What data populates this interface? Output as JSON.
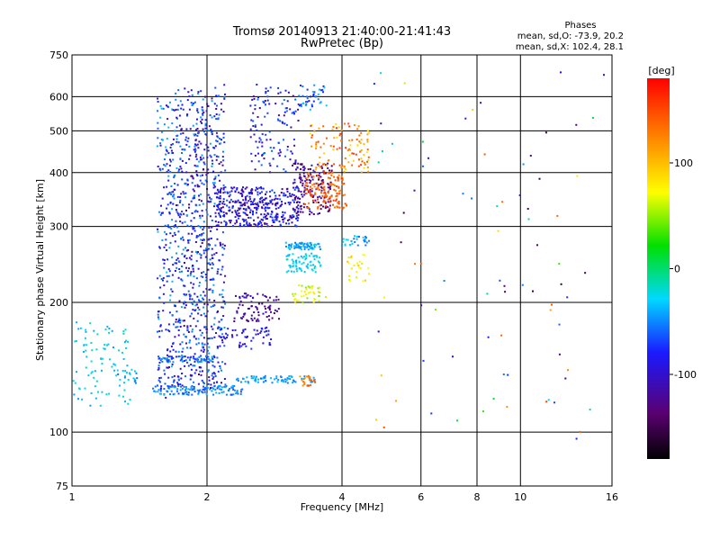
{
  "chart_data": {
    "type": "scatter",
    "title": "Tromsø 20140913 21:40:00-21:41:43",
    "subtitle": "RwPretec (Bp)",
    "stats": {
      "heading": "Phases",
      "line1": "mean, sd,O: -73.9, 20.2",
      "line2": "mean, sd,X: 102.4, 28.1"
    },
    "xlabel": "Frequency [MHz]",
    "ylabel": "Stationary phase Virtual Height [km]",
    "xscale": "log",
    "yscale": "log",
    "xlim": [
      1,
      16
    ],
    "ylim": [
      75,
      750
    ],
    "grid": true,
    "xticks": [
      1,
      2,
      4,
      6,
      8,
      10,
      16
    ],
    "xtick_labels": [
      "1",
      "2",
      "4",
      "6",
      "8",
      "10",
      "16"
    ],
    "xgrid": [
      2,
      4,
      6,
      8,
      10
    ],
    "yticks": [
      75,
      100,
      200,
      300,
      400,
      500,
      600,
      750
    ],
    "ytick_labels": [
      "75",
      "100",
      "200",
      "300",
      "400",
      "500",
      "600",
      "750"
    ],
    "ygrid": [
      100,
      200,
      300,
      400,
      500,
      600
    ],
    "colorbar": {
      "label": "[deg]",
      "ticks": [
        100,
        0,
        -100
      ],
      "tick_labels": [
        "100",
        "0",
        "-100"
      ],
      "range": [
        -180,
        180
      ],
      "cmap": "rainbow"
    },
    "point_groups": [
      {
        "x": [
          1.0,
          1.35
        ],
        "y": [
          115,
          180
        ],
        "c": [
          -45,
          -15
        ],
        "n": 90
      },
      {
        "x": [
          1.25,
          1.4
        ],
        "y": [
          130,
          140
        ],
        "c": [
          -60,
          -20
        ],
        "n": 20
      },
      {
        "x": [
          1.55,
          1.7
        ],
        "y": [
          120,
          600
        ],
        "c": [
          -110,
          -30
        ],
        "n": 220
      },
      {
        "x": [
          1.7,
          2.0
        ],
        "y": [
          125,
          630
        ],
        "c": [
          -120,
          -40
        ],
        "n": 500
      },
      {
        "x": [
          2.0,
          2.2
        ],
        "y": [
          125,
          640
        ],
        "c": [
          -120,
          -40
        ],
        "n": 260
      },
      {
        "x": [
          1.5,
          2.4
        ],
        "y": [
          122,
          128
        ],
        "c": [
          -70,
          -35
        ],
        "n": 110
      },
      {
        "x": [
          1.55,
          2.1
        ],
        "y": [
          145,
          150
        ],
        "c": [
          -80,
          -40
        ],
        "n": 60
      },
      {
        "x": [
          2.1,
          3.2
        ],
        "y": [
          300,
          370
        ],
        "c": [
          -130,
          -60
        ],
        "n": 380
      },
      {
        "x": [
          2.3,
          2.9
        ],
        "y": [
          180,
          210
        ],
        "c": [
          -140,
          -100
        ],
        "n": 80
      },
      {
        "x": [
          2.1,
          2.8
        ],
        "y": [
          155,
          175
        ],
        "c": [
          -110,
          -70
        ],
        "n": 60
      },
      {
        "x": [
          2.3,
          3.5
        ],
        "y": [
          130,
          135
        ],
        "c": [
          -60,
          -30
        ],
        "n": 70
      },
      {
        "x": [
          2.5,
          3.2
        ],
        "y": [
          400,
          640
        ],
        "c": [
          -120,
          -50
        ],
        "n": 120
      },
      {
        "x": [
          3.0,
          3.6
        ],
        "y": [
          265,
          275
        ],
        "c": [
          -60,
          -20
        ],
        "n": 70
      },
      {
        "x": [
          3.0,
          3.6
        ],
        "y": [
          235,
          260
        ],
        "c": [
          -40,
          -15
        ],
        "n": 70
      },
      {
        "x": [
          3.1,
          3.7
        ],
        "y": [
          200,
          220
        ],
        "c": [
          40,
          90
        ],
        "n": 40
      },
      {
        "x": [
          3.1,
          3.8
        ],
        "y": [
          320,
          420
        ],
        "c": [
          -150,
          -90
        ],
        "n": 150
      },
      {
        "x": [
          3.3,
          4.1
        ],
        "y": [
          330,
          400
        ],
        "c": [
          120,
          160
        ],
        "n": 130
      },
      {
        "x": [
          3.4,
          4.6
        ],
        "y": [
          400,
          520
        ],
        "c": [
          80,
          160
        ],
        "n": 110
      },
      {
        "x": [
          3.2,
          3.7
        ],
        "y": [
          560,
          640
        ],
        "c": [
          -90,
          -30
        ],
        "n": 40
      },
      {
        "x": [
          3.2,
          3.5
        ],
        "y": [
          128,
          135
        ],
        "c": [
          110,
          150
        ],
        "n": 20
      },
      {
        "x": [
          4.0,
          4.6
        ],
        "y": [
          270,
          285
        ],
        "c": [
          -60,
          -20
        ],
        "n": 30
      },
      {
        "x": [
          4.1,
          4.6
        ],
        "y": [
          220,
          260
        ],
        "c": [
          60,
          100
        ],
        "n": 25
      },
      {
        "x": [
          4.6,
          16.0
        ],
        "y": [
          90,
          700
        ],
        "c": [
          -160,
          160
        ],
        "n": 80
      }
    ],
    "seed": 7
  }
}
